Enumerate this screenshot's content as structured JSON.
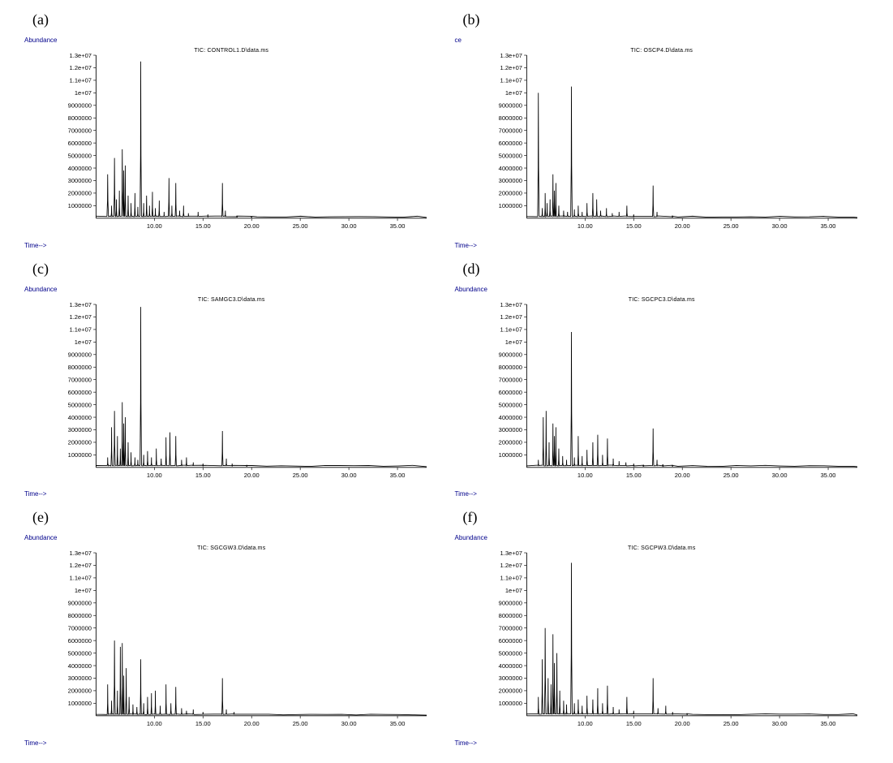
{
  "layout": {
    "rows": 3,
    "cols": 2,
    "panel_labels": [
      "(a)",
      "(b)",
      "(c)",
      "(d)",
      "(e)",
      "(f)"
    ]
  },
  "common": {
    "y_axis_label": "Abundance",
    "x_axis_label": "Time-->",
    "axis_label_color": "#00008b",
    "axis_label_fontsize": 8,
    "title_fontsize": 7,
    "tick_fontsize": 7,
    "line_color": "#000000",
    "line_width": 0.8,
    "background_color": "#ffffff",
    "xlim": [
      4,
      38
    ],
    "xtick_start": 10,
    "xtick_step": 5,
    "xtick_end": 35,
    "ylim": [
      0,
      13000000.0
    ],
    "ytick_labels": [
      "1000000",
      "2000000",
      "3000000",
      "4000000",
      "5000000",
      "6000000",
      "7000000",
      "8000000",
      "9000000",
      "1e+07",
      "1.1e+07",
      "1.2e+07",
      "1.3e+07"
    ],
    "ytick_values": [
      1000000,
      2000000,
      3000000,
      4000000,
      5000000,
      6000000,
      7000000,
      8000000,
      9000000,
      10000000,
      11000000,
      12000000,
      13000000
    ]
  },
  "charts": [
    {
      "id": "a",
      "title": "TIC: CONTROL1.D\\data.ms",
      "peaks": [
        {
          "t": 5.2,
          "h": 3500000.0,
          "w": 0.15
        },
        {
          "t": 5.6,
          "h": 1000000.0,
          "w": 0.1
        },
        {
          "t": 5.9,
          "h": 4800000.0,
          "w": 0.15
        },
        {
          "t": 6.1,
          "h": 1500000.0,
          "w": 0.1
        },
        {
          "t": 6.4,
          "h": 2200000.0,
          "w": 0.1
        },
        {
          "t": 6.7,
          "h": 5500000.0,
          "w": 0.15
        },
        {
          "t": 6.85,
          "h": 3800000.0,
          "w": 0.1
        },
        {
          "t": 7.0,
          "h": 4200000.0,
          "w": 0.12
        },
        {
          "t": 7.3,
          "h": 1800000.0,
          "w": 0.1
        },
        {
          "t": 7.6,
          "h": 1200000.0,
          "w": 0.1
        },
        {
          "t": 8.0,
          "h": 2000000.0,
          "w": 0.1
        },
        {
          "t": 8.3,
          "h": 900000.0,
          "w": 0.1
        },
        {
          "t": 8.6,
          "h": 12500000.0,
          "w": 0.15
        },
        {
          "t": 8.9,
          "h": 1200000.0,
          "w": 0.1
        },
        {
          "t": 9.2,
          "h": 1800000.0,
          "w": 0.1
        },
        {
          "t": 9.5,
          "h": 1000000.0,
          "w": 0.1
        },
        {
          "t": 9.8,
          "h": 2100000.0,
          "w": 0.1
        },
        {
          "t": 10.1,
          "h": 800000.0,
          "w": 0.1
        },
        {
          "t": 10.5,
          "h": 1400000.0,
          "w": 0.1
        },
        {
          "t": 11.0,
          "h": 500000.0,
          "w": 0.1
        },
        {
          "t": 11.5,
          "h": 3200000.0,
          "w": 0.12
        },
        {
          "t": 11.8,
          "h": 1000000.0,
          "w": 0.1
        },
        {
          "t": 12.2,
          "h": 2800000.0,
          "w": 0.12
        },
        {
          "t": 12.6,
          "h": 600000.0,
          "w": 0.1
        },
        {
          "t": 13.0,
          "h": 1000000.0,
          "w": 0.1
        },
        {
          "t": 13.5,
          "h": 400000.0,
          "w": 0.1
        },
        {
          "t": 14.5,
          "h": 500000.0,
          "w": 0.1
        },
        {
          "t": 15.5,
          "h": 300000.0,
          "w": 0.1
        },
        {
          "t": 17.0,
          "h": 2800000.0,
          "w": 0.12
        },
        {
          "t": 17.3,
          "h": 600000.0,
          "w": 0.1
        },
        {
          "t": 18.5,
          "h": 200000.0,
          "w": 0.1
        },
        {
          "t": 20.0,
          "h": 150000.0,
          "w": 0.1
        }
      ],
      "baseline": 150000.0
    },
    {
      "id": "b",
      "title": "TIC: OSCP4.D\\data.ms",
      "y_axis_label_override": "ce",
      "peaks": [
        {
          "t": 5.2,
          "h": 10000000.0,
          "w": 0.15
        },
        {
          "t": 5.6,
          "h": 800000.0,
          "w": 0.1
        },
        {
          "t": 5.9,
          "h": 2000000.0,
          "w": 0.1
        },
        {
          "t": 6.1,
          "h": 1200000.0,
          "w": 0.1
        },
        {
          "t": 6.4,
          "h": 1500000.0,
          "w": 0.1
        },
        {
          "t": 6.7,
          "h": 3500000.0,
          "w": 0.12
        },
        {
          "t": 6.85,
          "h": 2200000.0,
          "w": 0.1
        },
        {
          "t": 7.0,
          "h": 2800000.0,
          "w": 0.1
        },
        {
          "t": 7.3,
          "h": 1000000.0,
          "w": 0.1
        },
        {
          "t": 7.8,
          "h": 600000.0,
          "w": 0.1
        },
        {
          "t": 8.2,
          "h": 500000.0,
          "w": 0.1
        },
        {
          "t": 8.6,
          "h": 10500000.0,
          "w": 0.15
        },
        {
          "t": 8.9,
          "h": 700000.0,
          "w": 0.1
        },
        {
          "t": 9.3,
          "h": 1000000.0,
          "w": 0.1
        },
        {
          "t": 9.7,
          "h": 500000.0,
          "w": 0.1
        },
        {
          "t": 10.2,
          "h": 1200000.0,
          "w": 0.1
        },
        {
          "t": 10.8,
          "h": 2000000.0,
          "w": 0.1
        },
        {
          "t": 11.2,
          "h": 1500000.0,
          "w": 0.1
        },
        {
          "t": 11.6,
          "h": 600000.0,
          "w": 0.1
        },
        {
          "t": 12.2,
          "h": 800000.0,
          "w": 0.1
        },
        {
          "t": 12.8,
          "h": 400000.0,
          "w": 0.1
        },
        {
          "t": 13.5,
          "h": 500000.0,
          "w": 0.1
        },
        {
          "t": 14.3,
          "h": 1000000.0,
          "w": 0.1
        },
        {
          "t": 15.0,
          "h": 300000.0,
          "w": 0.1
        },
        {
          "t": 17.0,
          "h": 2600000.0,
          "w": 0.12
        },
        {
          "t": 17.4,
          "h": 500000.0,
          "w": 0.1
        },
        {
          "t": 19.0,
          "h": 200000.0,
          "w": 0.1
        }
      ],
      "baseline": 150000.0
    },
    {
      "id": "c",
      "title": "TIC: SAMGC3.D\\data.ms",
      "peaks": [
        {
          "t": 5.2,
          "h": 800000.0,
          "w": 0.1
        },
        {
          "t": 5.6,
          "h": 3200000.0,
          "w": 0.12
        },
        {
          "t": 5.9,
          "h": 4500000.0,
          "w": 0.15
        },
        {
          "t": 6.2,
          "h": 2500000.0,
          "w": 0.1
        },
        {
          "t": 6.5,
          "h": 1500000.0,
          "w": 0.1
        },
        {
          "t": 6.7,
          "h": 5200000.0,
          "w": 0.12
        },
        {
          "t": 6.85,
          "h": 3500000.0,
          "w": 0.1
        },
        {
          "t": 7.0,
          "h": 4000000.0,
          "w": 0.12
        },
        {
          "t": 7.3,
          "h": 2000000.0,
          "w": 0.1
        },
        {
          "t": 7.6,
          "h": 1200000.0,
          "w": 0.1
        },
        {
          "t": 8.0,
          "h": 800000.0,
          "w": 0.1
        },
        {
          "t": 8.3,
          "h": 600000.0,
          "w": 0.1
        },
        {
          "t": 8.6,
          "h": 12800000.0,
          "w": 0.15
        },
        {
          "t": 8.9,
          "h": 1000000.0,
          "w": 0.1
        },
        {
          "t": 9.3,
          "h": 1300000.0,
          "w": 0.1
        },
        {
          "t": 9.7,
          "h": 800000.0,
          "w": 0.1
        },
        {
          "t": 10.2,
          "h": 1500000.0,
          "w": 0.1
        },
        {
          "t": 10.7,
          "h": 700000.0,
          "w": 0.1
        },
        {
          "t": 11.2,
          "h": 2400000.0,
          "w": 0.1
        },
        {
          "t": 11.6,
          "h": 2800000.0,
          "w": 0.1
        },
        {
          "t": 12.2,
          "h": 2500000.0,
          "w": 0.12
        },
        {
          "t": 12.8,
          "h": 600000.0,
          "w": 0.1
        },
        {
          "t": 13.3,
          "h": 800000.0,
          "w": 0.1
        },
        {
          "t": 14.0,
          "h": 400000.0,
          "w": 0.1
        },
        {
          "t": 15.0,
          "h": 300000.0,
          "w": 0.1
        },
        {
          "t": 17.0,
          "h": 2900000.0,
          "w": 0.12
        },
        {
          "t": 17.4,
          "h": 700000.0,
          "w": 0.1
        },
        {
          "t": 18.0,
          "h": 300000.0,
          "w": 0.1
        },
        {
          "t": 19.5,
          "h": 200000.0,
          "w": 0.1
        }
      ],
      "baseline": 150000.0
    },
    {
      "id": "d",
      "title": "TIC: SGCPC3.D\\data.ms",
      "peaks": [
        {
          "t": 5.2,
          "h": 600000.0,
          "w": 0.1
        },
        {
          "t": 5.7,
          "h": 4000000.0,
          "w": 0.12
        },
        {
          "t": 6.0,
          "h": 4500000.0,
          "w": 0.12
        },
        {
          "t": 6.3,
          "h": 2000000.0,
          "w": 0.1
        },
        {
          "t": 6.7,
          "h": 3500000.0,
          "w": 0.12
        },
        {
          "t": 6.85,
          "h": 2500000.0,
          "w": 0.1
        },
        {
          "t": 7.0,
          "h": 3200000.0,
          "w": 0.1
        },
        {
          "t": 7.3,
          "h": 1500000.0,
          "w": 0.1
        },
        {
          "t": 7.7,
          "h": 900000.0,
          "w": 0.1
        },
        {
          "t": 8.1,
          "h": 600000.0,
          "w": 0.1
        },
        {
          "t": 8.6,
          "h": 10800000.0,
          "w": 0.15
        },
        {
          "t": 8.9,
          "h": 800000.0,
          "w": 0.1
        },
        {
          "t": 9.3,
          "h": 2500000.0,
          "w": 0.1
        },
        {
          "t": 9.7,
          "h": 900000.0,
          "w": 0.1
        },
        {
          "t": 10.2,
          "h": 1400000.0,
          "w": 0.1
        },
        {
          "t": 10.8,
          "h": 2000000.0,
          "w": 0.1
        },
        {
          "t": 11.3,
          "h": 2600000.0,
          "w": 0.12
        },
        {
          "t": 11.8,
          "h": 1000000.0,
          "w": 0.1
        },
        {
          "t": 12.3,
          "h": 2300000.0,
          "w": 0.12
        },
        {
          "t": 12.9,
          "h": 700000.0,
          "w": 0.1
        },
        {
          "t": 13.5,
          "h": 500000.0,
          "w": 0.1
        },
        {
          "t": 14.2,
          "h": 400000.0,
          "w": 0.1
        },
        {
          "t": 15.0,
          "h": 300000.0,
          "w": 0.1
        },
        {
          "t": 16.0,
          "h": 200000.0,
          "w": 0.1
        },
        {
          "t": 17.0,
          "h": 3100000.0,
          "w": 0.12
        },
        {
          "t": 17.4,
          "h": 600000.0,
          "w": 0.1
        },
        {
          "t": 18.0,
          "h": 250000.0,
          "w": 0.1
        },
        {
          "t": 19.0,
          "h": 200000.0,
          "w": 0.1
        }
      ],
      "baseline": 150000.0
    },
    {
      "id": "e",
      "title": "TIC: SGCGW3.D\\data.ms",
      "peaks": [
        {
          "t": 5.2,
          "h": 2500000.0,
          "w": 0.1
        },
        {
          "t": 5.6,
          "h": 1200000.0,
          "w": 0.1
        },
        {
          "t": 5.9,
          "h": 6000000.0,
          "w": 0.15
        },
        {
          "t": 6.2,
          "h": 2000000.0,
          "w": 0.1
        },
        {
          "t": 6.5,
          "h": 5500000.0,
          "w": 0.12
        },
        {
          "t": 6.7,
          "h": 5800000.0,
          "w": 0.12
        },
        {
          "t": 6.85,
          "h": 3200000.0,
          "w": 0.1
        },
        {
          "t": 7.1,
          "h": 3800000.0,
          "w": 0.12
        },
        {
          "t": 7.4,
          "h": 1500000.0,
          "w": 0.1
        },
        {
          "t": 7.8,
          "h": 900000.0,
          "w": 0.1
        },
        {
          "t": 8.2,
          "h": 700000.0,
          "w": 0.1
        },
        {
          "t": 8.6,
          "h": 4500000.0,
          "w": 0.12
        },
        {
          "t": 8.9,
          "h": 1000000.0,
          "w": 0.1
        },
        {
          "t": 9.3,
          "h": 1500000.0,
          "w": 0.1
        },
        {
          "t": 9.7,
          "h": 1800000.0,
          "w": 0.1
        },
        {
          "t": 10.1,
          "h": 2000000.0,
          "w": 0.1
        },
        {
          "t": 10.6,
          "h": 800000.0,
          "w": 0.1
        },
        {
          "t": 11.2,
          "h": 2500000.0,
          "w": 0.1
        },
        {
          "t": 11.7,
          "h": 1000000.0,
          "w": 0.1
        },
        {
          "t": 12.2,
          "h": 2300000.0,
          "w": 0.12
        },
        {
          "t": 12.8,
          "h": 600000.0,
          "w": 0.1
        },
        {
          "t": 13.3,
          "h": 400000.0,
          "w": 0.1
        },
        {
          "t": 14.0,
          "h": 500000.0,
          "w": 0.1
        },
        {
          "t": 15.0,
          "h": 300000.0,
          "w": 0.1
        },
        {
          "t": 17.0,
          "h": 3000000.0,
          "w": 0.12
        },
        {
          "t": 17.4,
          "h": 500000.0,
          "w": 0.1
        },
        {
          "t": 18.2,
          "h": 300000.0,
          "w": 0.1
        }
      ],
      "baseline": 120000.0
    },
    {
      "id": "f",
      "title": "TIC: SGCPW3.D\\data.ms",
      "peaks": [
        {
          "t": 5.2,
          "h": 1500000.0,
          "w": 0.1
        },
        {
          "t": 5.6,
          "h": 4500000.0,
          "w": 0.12
        },
        {
          "t": 5.9,
          "h": 7000000.0,
          "w": 0.15
        },
        {
          "t": 6.2,
          "h": 3000000.0,
          "w": 0.1
        },
        {
          "t": 6.5,
          "h": 2500000.0,
          "w": 0.1
        },
        {
          "t": 6.7,
          "h": 6500000.0,
          "w": 0.12
        },
        {
          "t": 6.85,
          "h": 4200000.0,
          "w": 0.1
        },
        {
          "t": 7.1,
          "h": 5000000.0,
          "w": 0.12
        },
        {
          "t": 7.4,
          "h": 2000000.0,
          "w": 0.1
        },
        {
          "t": 7.8,
          "h": 1200000.0,
          "w": 0.1
        },
        {
          "t": 8.1,
          "h": 900000.0,
          "w": 0.1
        },
        {
          "t": 8.6,
          "h": 12200000.0,
          "w": 0.15
        },
        {
          "t": 8.9,
          "h": 1000000.0,
          "w": 0.1
        },
        {
          "t": 9.3,
          "h": 1300000.0,
          "w": 0.1
        },
        {
          "t": 9.7,
          "h": 800000.0,
          "w": 0.1
        },
        {
          "t": 10.2,
          "h": 1600000.0,
          "w": 0.1
        },
        {
          "t": 10.8,
          "h": 1300000.0,
          "w": 0.1
        },
        {
          "t": 11.3,
          "h": 2200000.0,
          "w": 0.1
        },
        {
          "t": 11.8,
          "h": 1000000.0,
          "w": 0.1
        },
        {
          "t": 12.3,
          "h": 2400000.0,
          "w": 0.12
        },
        {
          "t": 12.9,
          "h": 700000.0,
          "w": 0.1
        },
        {
          "t": 13.5,
          "h": 500000.0,
          "w": 0.1
        },
        {
          "t": 14.3,
          "h": 1500000.0,
          "w": 0.1
        },
        {
          "t": 15.0,
          "h": 400000.0,
          "w": 0.1
        },
        {
          "t": 17.0,
          "h": 3000000.0,
          "w": 0.12
        },
        {
          "t": 17.5,
          "h": 600000.0,
          "w": 0.1
        },
        {
          "t": 18.3,
          "h": 800000.0,
          "w": 0.1
        },
        {
          "t": 19.0,
          "h": 300000.0,
          "w": 0.1
        },
        {
          "t": 20.5,
          "h": 200000.0,
          "w": 0.1
        }
      ],
      "baseline": 150000.0
    }
  ]
}
